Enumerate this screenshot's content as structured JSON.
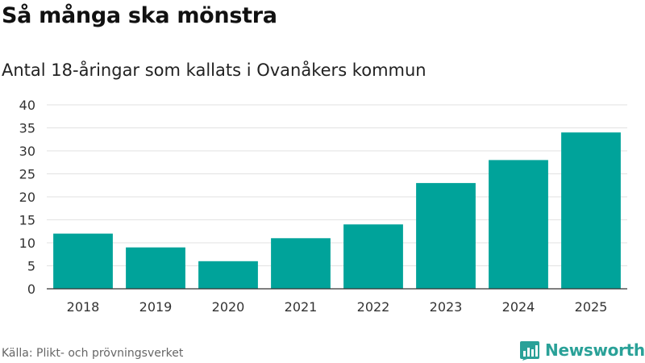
{
  "title": "Så många ska mönstra",
  "subtitle": "Antal 18-åringar som kallats i Ovanåkers kommun",
  "source": "Källa: Plikt- och prövningsverket",
  "brand": {
    "name": "Newsworthy",
    "icon": "newsworthy-logo-icon",
    "color": "#2aa198"
  },
  "colors": {
    "bar": "#00a39a",
    "grid": "#e2e2e2",
    "axis": "#333333"
  },
  "chart_data": {
    "type": "bar",
    "title": "Så många ska mönstra",
    "subtitle": "Antal 18-åringar som kallats i Ovanåkers kommun",
    "categories": [
      "2018",
      "2019",
      "2020",
      "2021",
      "2022",
      "2023",
      "2024",
      "2025"
    ],
    "values": [
      12,
      9,
      6,
      11,
      14,
      23,
      28,
      34
    ],
    "ylim": [
      0,
      40
    ],
    "yticks": [
      0,
      5,
      10,
      15,
      20,
      25,
      30,
      35,
      40
    ],
    "grid": true,
    "legend": "none"
  }
}
